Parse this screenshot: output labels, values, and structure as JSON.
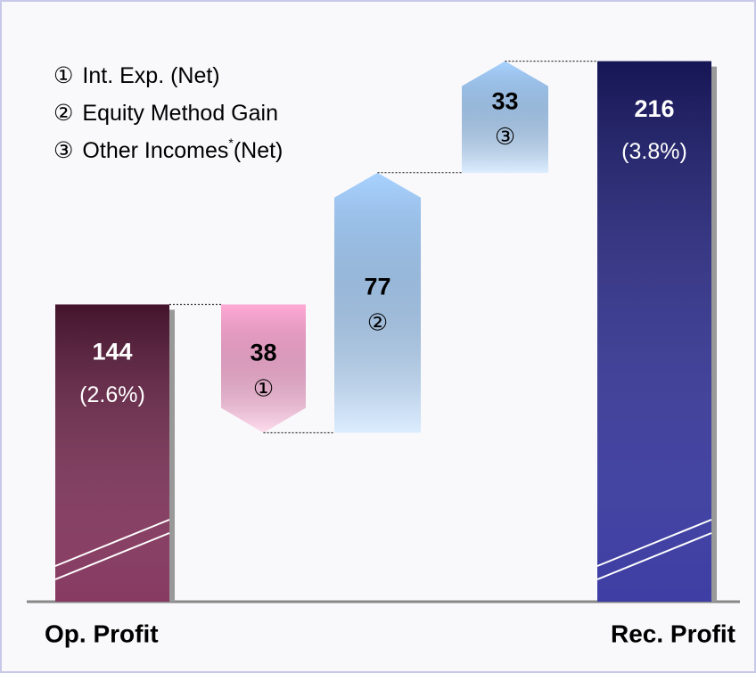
{
  "chart_data": {
    "type": "waterfall",
    "categories": [
      "Op. Profit",
      null,
      null,
      null,
      "Rec. Profit"
    ],
    "values": [
      144,
      -38,
      77,
      33,
      216
    ],
    "value_labels": [
      "144",
      "38",
      "77",
      "33",
      "216"
    ],
    "sub_labels": [
      "(2.6%)",
      "①",
      "②",
      "③",
      "(3.8%)"
    ],
    "colors": [
      "#7a2450",
      "#ffaad6",
      "#a8d2ff",
      "#a8d2ff",
      "#28289a"
    ],
    "ylim": [
      56,
      232
    ],
    "legend": [
      {
        "marker": "①",
        "text": "Int. Exp. (Net)"
      },
      {
        "marker": "②",
        "text": "Equity Method Gain"
      },
      {
        "marker": "③",
        "text": "Other Incomes",
        "sup": "*",
        "after": "(Net)"
      }
    ]
  }
}
